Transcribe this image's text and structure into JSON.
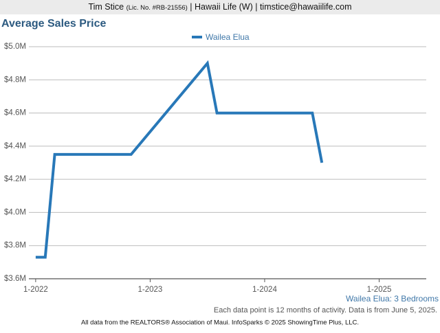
{
  "header": {
    "name": "Tim Stice",
    "license": "(Lic. No. #RB-21556)",
    "rest": "| Hawaii Life (W) | timstice@hawaiilife.com"
  },
  "chart_data": {
    "type": "line",
    "title": "Average Sales Price",
    "x": [
      "1-2022",
      "2-2022",
      "3-2022",
      "11-2022",
      "7-2023",
      "8-2023",
      "6-2024",
      "7-2024"
    ],
    "series": [
      {
        "name": "Wailea Elua",
        "color": "#2878b8",
        "values": [
          3730000,
          3730000,
          4350000,
          4350000,
          4900000,
          4600000,
          4600000,
          4300000
        ]
      }
    ],
    "xlim": [
      "12-2021",
      "5-2025"
    ],
    "xticks": [
      "1-2022",
      "1-2023",
      "1-2024",
      "1-2025"
    ],
    "ylim": [
      3600000,
      5000000
    ],
    "yticks": [
      {
        "value": 3600000,
        "label": "$3.6M"
      },
      {
        "value": 3800000,
        "label": "$3.8M"
      },
      {
        "value": 4000000,
        "label": "$4.0M"
      },
      {
        "value": 4200000,
        "label": "$4.2M"
      },
      {
        "value": 4400000,
        "label": "$4.4M"
      },
      {
        "value": 4600000,
        "label": "$4.6M"
      },
      {
        "value": 4800000,
        "label": "$4.8M"
      },
      {
        "value": 5000000,
        "label": "$5.0M"
      }
    ],
    "grid": true,
    "legend": "top",
    "subtitle": "Wailea Elua: 3 Bedrooms",
    "note": "Each data point is 12 months of activity. Data is from June 5, 2025.",
    "footer": "All data from the REALTORS® Association of Maui. InfoSparks © 2025 ShowingTime Plus, LLC."
  }
}
